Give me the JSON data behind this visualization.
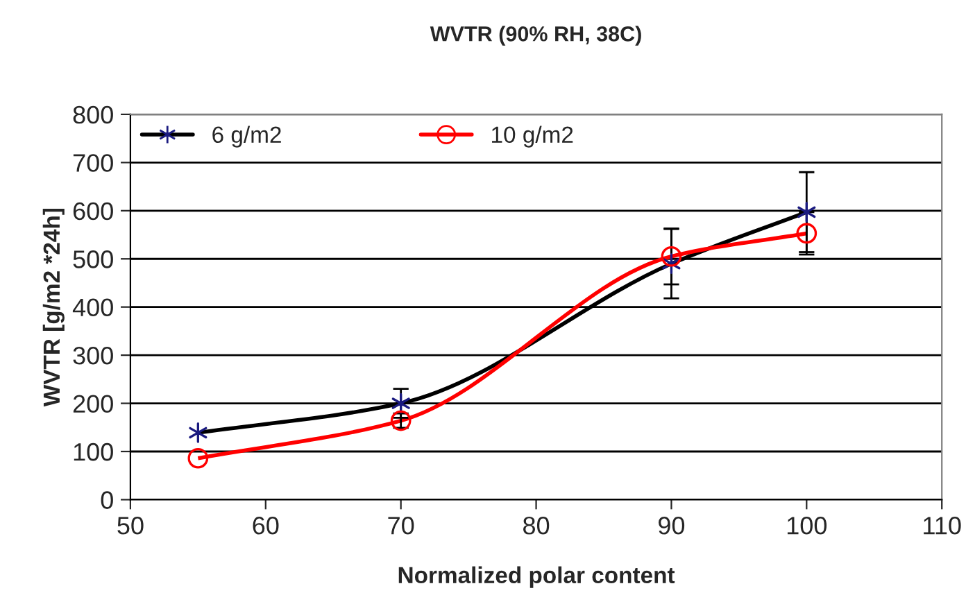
{
  "chart_data": {
    "type": "line",
    "title": "WVTR (90% RH, 38C)",
    "xlabel": "Normalized polar content",
    "ylabel": "WVTR [g/m2 *24h]",
    "x": [
      55,
      70,
      90,
      100
    ],
    "series": [
      {
        "name": "6 g/m2",
        "color": "#000000",
        "marker": "cross",
        "values": [
          139,
          200,
          490,
          597
        ],
        "errors": [
          null,
          30,
          72,
          83
        ]
      },
      {
        "name": "10 g/m2",
        "color": "#ff0000",
        "marker": "circle",
        "values": [
          86,
          164,
          505,
          553
        ],
        "errors": [
          null,
          15,
          58,
          44
        ]
      }
    ],
    "xlim": [
      50,
      110
    ],
    "xticks": [
      50,
      60,
      70,
      80,
      90,
      100,
      110
    ],
    "ylim": [
      0,
      800
    ],
    "yticks": [
      0,
      100,
      200,
      300,
      400,
      500,
      600,
      700,
      800
    ],
    "grid": "y",
    "legend": "top left",
    "line_style": "solid"
  }
}
